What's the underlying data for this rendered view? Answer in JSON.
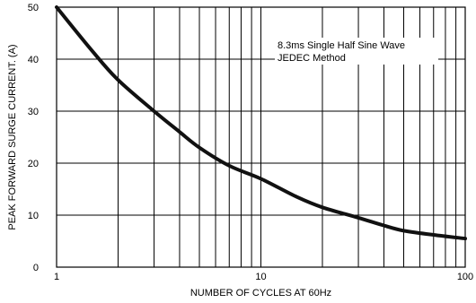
{
  "chart_data": {
    "type": "line",
    "title": "",
    "xlabel": "NUMBER OF CYCLES AT 60Hz",
    "ylabel": "PEAK FORWARD SURGE CURRENT. (A)",
    "xscale": "log",
    "xlim": [
      1,
      100
    ],
    "ylim": [
      0,
      50
    ],
    "x_ticks": [
      1,
      10,
      100
    ],
    "x_tick_labels": [
      "1",
      "10",
      "100"
    ],
    "y_ticks": [
      0,
      10,
      20,
      30,
      40,
      50
    ],
    "y_tick_labels": [
      "0",
      "10",
      "20",
      "30",
      "40",
      "50"
    ],
    "grid": true,
    "annotations": [
      "8.3ms Single Half Sine Wave",
      "JEDEC Method"
    ],
    "series": [
      {
        "x": [
          1,
          1.5,
          2,
          3,
          4,
          5,
          7,
          10,
          15,
          20,
          30,
          40,
          50,
          70,
          100
        ],
        "y": [
          50,
          41.5,
          36,
          30,
          26,
          23,
          19.5,
          17,
          13.5,
          11.5,
          9.5,
          8,
          7,
          6.2,
          5.5
        ]
      }
    ],
    "colors": {
      "curve": "#111111",
      "grid": "#000000",
      "annotation_bg": "#ffffff"
    }
  }
}
